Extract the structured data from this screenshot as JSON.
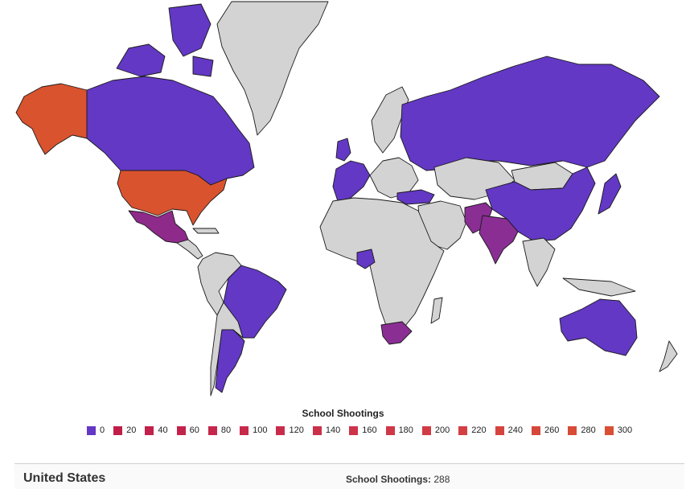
{
  "legend": {
    "title": "School Shootings",
    "items": [
      {
        "label": "0",
        "color": "#6338c4"
      },
      {
        "label": "20",
        "color": "#bf1e48"
      },
      {
        "label": "40",
        "color": "#c1214a"
      },
      {
        "label": "60",
        "color": "#c3234b"
      },
      {
        "label": "80",
        "color": "#c5264b"
      },
      {
        "label": "100",
        "color": "#c7294b"
      },
      {
        "label": "120",
        "color": "#c92c4b"
      },
      {
        "label": "140",
        "color": "#cb304a"
      },
      {
        "label": "160",
        "color": "#cd3349"
      },
      {
        "label": "180",
        "color": "#cf3747"
      },
      {
        "label": "200",
        "color": "#d13b45"
      },
      {
        "label": "220",
        "color": "#d33f42"
      },
      {
        "label": "240",
        "color": "#d5433f"
      },
      {
        "label": "260",
        "color": "#d6473b"
      },
      {
        "label": "280",
        "color": "#d84b37"
      },
      {
        "label": "300",
        "color": "#da4f33"
      }
    ]
  },
  "selection": {
    "country": "United States",
    "stat_label": "School Shootings:",
    "stat_value": "288"
  },
  "colors": {
    "no_data": "#d3d3d3",
    "purple": "#6338c4",
    "high": "#d9532f",
    "mexico": "#8e2a8a",
    "india": "#8a2e94"
  },
  "countries": [
    {
      "name": "United States",
      "value": 288,
      "color": "#d9532f"
    },
    {
      "name": "Alaska (United States)",
      "value": 288,
      "color": "#d9532f"
    },
    {
      "name": "Mexico",
      "color": "#8e2a8a"
    },
    {
      "name": "India",
      "color": "#8a2e94"
    },
    {
      "name": "Pakistan",
      "color": "#8a2e94"
    },
    {
      "name": "South Africa",
      "color": "#8a2e94"
    },
    {
      "name": "Canada",
      "value": 0,
      "color": "#6338c4"
    },
    {
      "name": "Russia",
      "value": 0,
      "color": "#6338c4"
    },
    {
      "name": "China",
      "value": 0,
      "color": "#6338c4"
    },
    {
      "name": "Australia",
      "value": 0,
      "color": "#6338c4"
    },
    {
      "name": "Brazil",
      "value": 0,
      "color": "#6338c4"
    },
    {
      "name": "Argentina",
      "value": 0,
      "color": "#6338c4"
    },
    {
      "name": "Greenland",
      "color": "#d3d3d3"
    }
  ]
}
